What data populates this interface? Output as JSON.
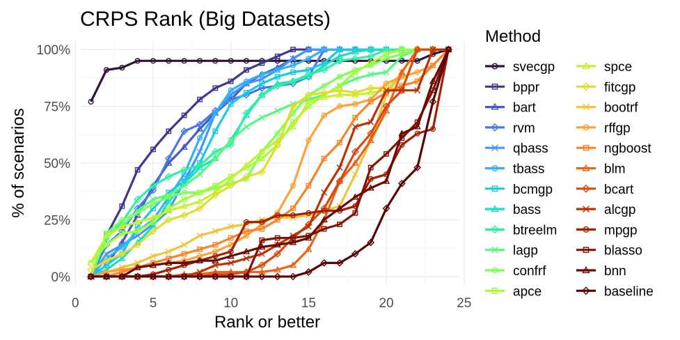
{
  "chart_data": {
    "type": "line",
    "title": "CRPS Rank (Big Datasets)",
    "xlabel": "Rank or better",
    "ylabel": "% of scenarios",
    "xlim": [
      0.3,
      24.7
    ],
    "ylim": [
      -0.04,
      1.04
    ],
    "xticks": [
      0,
      5,
      10,
      15,
      20,
      25
    ],
    "yticks": [
      0,
      0.25,
      0.5,
      0.75,
      1.0
    ],
    "ytick_labels": [
      "0%",
      "25%",
      "50%",
      "75%",
      "100%"
    ],
    "grid": true,
    "legend_title": "Method",
    "legend_position": "right",
    "x": [
      1,
      2,
      3,
      4,
      5,
      6,
      7,
      8,
      9,
      10,
      11,
      12,
      13,
      14,
      15,
      16,
      17,
      18,
      19,
      20,
      21,
      22,
      23,
      24
    ],
    "series": [
      {
        "name": "svecgp",
        "color": "#30123B",
        "marker": "circle",
        "values": [
          0.77,
          0.91,
          0.92,
          0.95,
          0.95,
          0.95,
          0.95,
          0.95,
          0.95,
          0.95,
          0.95,
          0.95,
          0.95,
          0.95,
          0.95,
          0.95,
          0.95,
          0.95,
          0.95,
          0.95,
          0.95,
          0.95,
          0.98,
          1.0
        ]
      },
      {
        "name": "bppr",
        "color": "#3E378F",
        "marker": "square",
        "values": [
          0.0,
          0.18,
          0.31,
          0.47,
          0.56,
          0.64,
          0.71,
          0.78,
          0.83,
          0.86,
          0.91,
          0.94,
          0.97,
          1.0,
          1.0,
          1.0,
          1.0,
          1.0,
          1.0,
          1.0,
          1.0,
          1.0,
          1.0,
          1.0
        ]
      },
      {
        "name": "bart",
        "color": "#4459C7",
        "marker": "triangle",
        "values": [
          0.0,
          0.05,
          0.15,
          0.27,
          0.4,
          0.5,
          0.57,
          0.65,
          0.72,
          0.78,
          0.85,
          0.89,
          0.92,
          0.96,
          1.0,
          1.0,
          1.0,
          1.0,
          1.0,
          1.0,
          1.0,
          1.0,
          1.0,
          1.0
        ]
      },
      {
        "name": "rvm",
        "color": "#4778E6",
        "marker": "diamond",
        "values": [
          0.0,
          0.14,
          0.2,
          0.3,
          0.38,
          0.52,
          0.64,
          0.67,
          0.73,
          0.78,
          0.8,
          0.83,
          0.84,
          0.85,
          0.88,
          1.0,
          1.0,
          1.0,
          1.0,
          1.0,
          1.0,
          1.0,
          1.0,
          1.0
        ]
      },
      {
        "name": "qbass",
        "color": "#4295F9",
        "marker": "x",
        "values": [
          0.0,
          0.1,
          0.14,
          0.18,
          0.23,
          0.29,
          0.42,
          0.55,
          0.72,
          0.8,
          0.85,
          0.87,
          0.91,
          0.96,
          1.0,
          1.0,
          1.0,
          1.0,
          1.0,
          1.0,
          1.0,
          1.0,
          1.0,
          1.0
        ]
      },
      {
        "name": "tbass",
        "color": "#32B1F7",
        "marker": "circle",
        "values": [
          0.0,
          0.08,
          0.13,
          0.2,
          0.25,
          0.35,
          0.45,
          0.61,
          0.72,
          0.82,
          0.86,
          0.89,
          0.91,
          0.93,
          0.96,
          1.0,
          1.0,
          1.0,
          1.0,
          1.0,
          1.0,
          1.0,
          1.0,
          1.0
        ]
      },
      {
        "name": "bcmgp",
        "color": "#1CC9E2",
        "marker": "square",
        "values": [
          0.0,
          0.05,
          0.1,
          0.22,
          0.3,
          0.37,
          0.42,
          0.5,
          0.64,
          0.76,
          0.81,
          0.85,
          0.88,
          0.9,
          0.91,
          0.94,
          1.0,
          1.0,
          1.0,
          1.0,
          1.0,
          1.0,
          1.0,
          1.0
        ]
      },
      {
        "name": "bass",
        "color": "#1ADCC7",
        "marker": "triangle",
        "values": [
          0.0,
          0.03,
          0.08,
          0.15,
          0.22,
          0.33,
          0.41,
          0.48,
          0.52,
          0.6,
          0.71,
          0.8,
          0.85,
          0.86,
          0.88,
          0.93,
          0.97,
          0.99,
          1.0,
          1.0,
          1.0,
          1.0,
          1.0,
          1.0
        ]
      },
      {
        "name": "btreelm",
        "color": "#31EEA5",
        "marker": "diamond",
        "values": [
          0.0,
          0.17,
          0.24,
          0.34,
          0.4,
          0.44,
          0.47,
          0.49,
          0.55,
          0.58,
          0.72,
          0.8,
          0.84,
          0.86,
          0.89,
          0.91,
          0.95,
          0.96,
          0.97,
          1.0,
          1.0,
          1.0,
          1.0,
          1.0
        ]
      },
      {
        "name": "lagp",
        "color": "#55F97E",
        "marker": "x",
        "values": [
          0.0,
          0.19,
          0.22,
          0.29,
          0.34,
          0.36,
          0.4,
          0.45,
          0.52,
          0.6,
          0.66,
          0.7,
          0.73,
          0.76,
          0.78,
          0.8,
          0.84,
          0.87,
          0.89,
          0.9,
          0.97,
          1.0,
          1.0,
          1.0
        ]
      },
      {
        "name": "confrf",
        "color": "#7DFE5A",
        "marker": "circle",
        "values": [
          0.0,
          0.19,
          0.25,
          0.28,
          0.32,
          0.35,
          0.37,
          0.37,
          0.39,
          0.41,
          0.43,
          0.55,
          0.63,
          0.72,
          0.8,
          0.84,
          0.88,
          0.91,
          0.93,
          0.96,
          0.98,
          1.0,
          1.0,
          1.0
        ]
      },
      {
        "name": "apce",
        "color": "#A2FC3C",
        "marker": "square",
        "values": [
          0.06,
          0.14,
          0.19,
          0.2,
          0.24,
          0.3,
          0.34,
          0.37,
          0.4,
          0.44,
          0.48,
          0.52,
          0.58,
          0.68,
          0.75,
          0.8,
          0.84,
          0.9,
          0.94,
          0.98,
          1.0,
          1.0,
          1.0,
          1.0
        ]
      },
      {
        "name": "spce",
        "color": "#C4F134",
        "marker": "triangle",
        "values": [
          0.06,
          0.18,
          0.22,
          0.24,
          0.26,
          0.29,
          0.31,
          0.33,
          0.37,
          0.43,
          0.49,
          0.55,
          0.6,
          0.66,
          0.77,
          0.79,
          0.8,
          0.8,
          0.81,
          0.82,
          0.9,
          1.0,
          1.0,
          1.0
        ]
      },
      {
        "name": "fitcgp",
        "color": "#DEDD32",
        "marker": "diamond",
        "values": [
          0.03,
          0.07,
          0.1,
          0.14,
          0.2,
          0.25,
          0.27,
          0.3,
          0.36,
          0.4,
          0.44,
          0.46,
          0.58,
          0.75,
          0.8,
          0.81,
          0.82,
          0.81,
          0.83,
          0.83,
          0.82,
          1.0,
          1.0,
          1.0
        ]
      },
      {
        "name": "bootrf",
        "color": "#F0C33A",
        "marker": "x",
        "values": [
          0.0,
          0.02,
          0.04,
          0.06,
          0.09,
          0.11,
          0.14,
          0.18,
          0.2,
          0.22,
          0.23,
          0.25,
          0.26,
          0.26,
          0.27,
          0.29,
          0.31,
          0.45,
          0.6,
          0.8,
          0.9,
          1.0,
          1.0,
          1.0
        ]
      },
      {
        "name": "rffgp",
        "color": "#FBA238",
        "marker": "circle",
        "values": [
          0.0,
          0.02,
          0.03,
          0.04,
          0.05,
          0.06,
          0.07,
          0.09,
          0.11,
          0.14,
          0.18,
          0.23,
          0.28,
          0.4,
          0.6,
          0.71,
          0.75,
          0.76,
          0.78,
          0.85,
          0.88,
          0.9,
          0.93,
          1.0
        ]
      },
      {
        "name": "ngboost",
        "color": "#F8842A",
        "marker": "square",
        "values": [
          0.0,
          0.0,
          0.02,
          0.04,
          0.06,
          0.08,
          0.1,
          0.12,
          0.14,
          0.17,
          0.2,
          0.21,
          0.25,
          0.3,
          0.4,
          0.52,
          0.59,
          0.7,
          0.77,
          0.81,
          0.84,
          0.86,
          0.93,
          1.0
        ]
      },
      {
        "name": "blm",
        "color": "#EC6419",
        "marker": "triangle",
        "values": [
          0.0,
          0.0,
          0.0,
          0.0,
          0.0,
          0.0,
          0.01,
          0.01,
          0.02,
          0.02,
          0.02,
          0.02,
          0.03,
          0.05,
          0.12,
          0.25,
          0.42,
          0.5,
          0.6,
          0.73,
          0.9,
          1.0,
          1.0,
          1.0
        ]
      },
      {
        "name": "bcart",
        "color": "#D84A0C",
        "marker": "diamond",
        "values": [
          0.0,
          0.0,
          0.0,
          0.0,
          0.0,
          0.0,
          0.0,
          0.0,
          0.01,
          0.01,
          0.02,
          0.05,
          0.1,
          0.17,
          0.23,
          0.3,
          0.42,
          0.55,
          0.63,
          0.75,
          0.82,
          1.0,
          1.0,
          1.0
        ]
      },
      {
        "name": "alcgp",
        "color": "#C03005",
        "marker": "x",
        "values": [
          0.0,
          0.0,
          0.0,
          0.0,
          0.0,
          0.0,
          0.0,
          0.02,
          0.05,
          0.06,
          0.08,
          0.1,
          0.14,
          0.18,
          0.22,
          0.37,
          0.48,
          0.66,
          0.68,
          0.82,
          0.82,
          0.82,
          1.0,
          1.0
        ]
      },
      {
        "name": "mpgp",
        "color": "#A11F02",
        "marker": "circle",
        "values": [
          0.0,
          0.0,
          0.0,
          0.0,
          0.01,
          0.03,
          0.05,
          0.07,
          0.09,
          0.11,
          0.24,
          0.24,
          0.27,
          0.27,
          0.28,
          0.29,
          0.29,
          0.31,
          0.43,
          0.45,
          0.58,
          0.63,
          0.65,
          1.0
        ]
      },
      {
        "name": "blasso",
        "color": "#841301",
        "marker": "square",
        "values": [
          0.0,
          0.0,
          0.0,
          0.0,
          0.0,
          0.0,
          0.0,
          0.0,
          0.0,
          0.0,
          0.0,
          0.16,
          0.17,
          0.17,
          0.18,
          0.21,
          0.23,
          0.28,
          0.48,
          0.54,
          0.61,
          0.68,
          0.82,
          1.0
        ]
      },
      {
        "name": "bnn",
        "color": "#6B0A01",
        "marker": "triangle",
        "values": [
          0.0,
          0.0,
          0.0,
          0.04,
          0.05,
          0.06,
          0.06,
          0.07,
          0.07,
          0.09,
          0.11,
          0.13,
          0.14,
          0.15,
          0.17,
          0.25,
          0.3,
          0.35,
          0.39,
          0.42,
          0.63,
          0.66,
          0.86,
          1.0
        ]
      },
      {
        "name": "baseline",
        "color": "#5A0403",
        "marker": "diamond",
        "values": [
          0.0,
          0.0,
          0.0,
          0.0,
          0.0,
          0.0,
          0.0,
          0.0,
          0.0,
          0.0,
          0.0,
          0.0,
          0.0,
          0.0,
          0.02,
          0.06,
          0.06,
          0.1,
          0.15,
          0.3,
          0.41,
          0.48,
          0.77,
          1.0
        ]
      }
    ]
  }
}
